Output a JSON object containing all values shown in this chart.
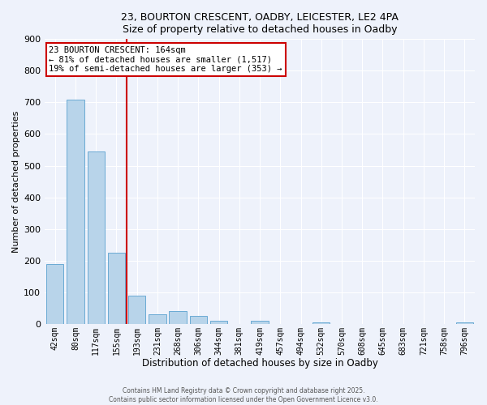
{
  "title_line1": "23, BOURTON CRESCENT, OADBY, LEICESTER, LE2 4PA",
  "title_line2": "Size of property relative to detached houses in Oadby",
  "xlabel": "Distribution of detached houses by size in Oadby",
  "ylabel": "Number of detached properties",
  "bin_labels": [
    "42sqm",
    "80sqm",
    "117sqm",
    "155sqm",
    "193sqm",
    "231sqm",
    "268sqm",
    "306sqm",
    "344sqm",
    "381sqm",
    "419sqm",
    "457sqm",
    "494sqm",
    "532sqm",
    "570sqm",
    "608sqm",
    "645sqm",
    "683sqm",
    "721sqm",
    "758sqm",
    "796sqm"
  ],
  "bar_values": [
    190,
    710,
    545,
    225,
    90,
    30,
    40,
    25,
    10,
    0,
    10,
    0,
    0,
    5,
    0,
    0,
    0,
    0,
    0,
    0,
    5
  ],
  "bar_color": "#b8d4ea",
  "bar_edge_color": "#6aaad4",
  "vline_color": "#cc0000",
  "annotation_line1": "23 BOURTON CRESCENT: 164sqm",
  "annotation_line2": "← 81% of detached houses are smaller (1,517)",
  "annotation_line3": "19% of semi-detached houses are larger (353) →",
  "annotation_box_facecolor": "white",
  "annotation_box_edgecolor": "#cc0000",
  "ylim": [
    0,
    900
  ],
  "yticks": [
    0,
    100,
    200,
    300,
    400,
    500,
    600,
    700,
    800,
    900
  ],
  "background_color": "#eef2fb",
  "grid_color": "white",
  "footer_line1": "Contains HM Land Registry data © Crown copyright and database right 2025.",
  "footer_line2": "Contains public sector information licensed under the Open Government Licence v3.0."
}
